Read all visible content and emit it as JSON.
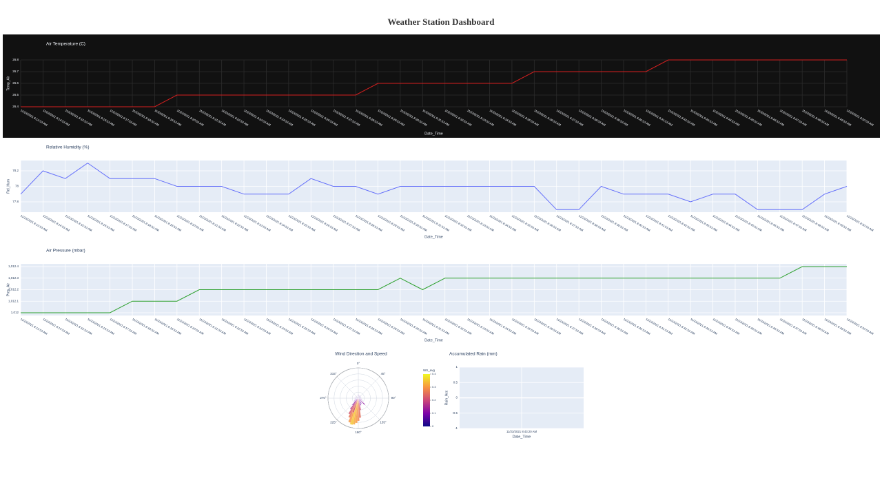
{
  "title": "Weather Station Dashboard",
  "chart_data": [
    {
      "type": "line",
      "theme": "dark",
      "title": "Air Temperature (C)",
      "x_label": "Date_Time",
      "y_label": "Temp_Air",
      "color": "#d62020",
      "categories": [
        "11/23/2021 8:13:53 AM",
        "11/23/2021 8:14:53 AM",
        "11/23/2021 8:15:53 AM",
        "11/23/2021 8:16:53 AM",
        "11/23/2021 8:17:53 AM",
        "11/23/2021 8:18:53 AM",
        "11/23/2021 8:19:53 AM",
        "11/23/2021 8:20:53 AM",
        "11/23/2021 8:21:53 AM",
        "11/23/2021 8:22:53 AM",
        "11/23/2021 8:23:53 AM",
        "11/23/2021 8:24:53 AM",
        "11/23/2021 8:25:53 AM",
        "11/23/2021 8:26:53 AM",
        "11/23/2021 8:27:53 AM",
        "11/23/2021 8:28:53 AM",
        "11/23/2021 8:29:53 AM",
        "11/23/2021 8:30:53 AM",
        "11/23/2021 8:31:53 AM",
        "11/23/2021 8:32:53 AM",
        "11/23/2021 8:33:53 AM",
        "11/23/2021 8:34:53 AM",
        "11/23/2021 8:35:53 AM",
        "11/23/2021 8:36:53 AM",
        "11/23/2021 8:37:53 AM",
        "11/23/2021 8:38:53 AM",
        "11/23/2021 8:39:53 AM",
        "11/23/2021 8:40:53 AM",
        "11/23/2021 8:41:53 AM",
        "11/23/2021 8:42:53 AM",
        "11/23/2021 8:43:53 AM",
        "11/23/2021 8:44:53 AM",
        "11/23/2021 8:45:53 AM",
        "11/23/2021 8:46:53 AM",
        "11/23/2021 8:47:53 AM",
        "11/23/2021 8:48:53 AM",
        "11/23/2021 8:49:53 AM",
        "11/23/2021 8:50:53 AM"
      ],
      "values": [
        26.4,
        26.4,
        26.4,
        26.4,
        26.4,
        26.4,
        26.4,
        26.5,
        26.5,
        26.5,
        26.5,
        26.5,
        26.5,
        26.5,
        26.5,
        26.5,
        26.6,
        26.6,
        26.6,
        26.6,
        26.6,
        26.6,
        26.6,
        26.7,
        26.7,
        26.7,
        26.7,
        26.7,
        26.7,
        26.8,
        26.8,
        26.8,
        26.8,
        26.8,
        26.8,
        26.8,
        26.8,
        26.8
      ],
      "ylim": [
        26.4,
        26.8
      ],
      "yticks": [
        26.4,
        26.5,
        26.6,
        26.7,
        26.8
      ],
      "grid": true
    },
    {
      "type": "line",
      "theme": "light",
      "title": "Relative Humidity (%)",
      "x_label": "Date_Time",
      "y_label": "Rel_Hum",
      "color": "#636efa",
      "categories": [
        "11/23/2021 8:13:53 AM",
        "11/23/2021 8:14:53 AM",
        "11/23/2021 8:15:53 AM",
        "11/23/2021 8:16:53 AM",
        "11/23/2021 8:17:53 AM",
        "11/23/2021 8:18:53 AM",
        "11/23/2021 8:19:53 AM",
        "11/23/2021 8:20:53 AM",
        "11/23/2021 8:21:53 AM",
        "11/23/2021 8:22:53 AM",
        "11/23/2021 8:23:53 AM",
        "11/23/2021 8:24:53 AM",
        "11/23/2021 8:25:53 AM",
        "11/23/2021 8:26:53 AM",
        "11/23/2021 8:27:53 AM",
        "11/23/2021 8:28:53 AM",
        "11/23/2021 8:29:53 AM",
        "11/23/2021 8:30:53 AM",
        "11/23/2021 8:31:53 AM",
        "11/23/2021 8:32:53 AM",
        "11/23/2021 8:33:53 AM",
        "11/23/2021 8:34:53 AM",
        "11/23/2021 8:35:53 AM",
        "11/23/2021 8:36:53 AM",
        "11/23/2021 8:37:53 AM",
        "11/23/2021 8:38:53 AM",
        "11/23/2021 8:39:53 AM",
        "11/23/2021 8:40:53 AM",
        "11/23/2021 8:41:53 AM",
        "11/23/2021 8:42:53 AM",
        "11/23/2021 8:43:53 AM",
        "11/23/2021 8:44:53 AM",
        "11/23/2021 8:45:53 AM",
        "11/23/2021 8:46:53 AM",
        "11/23/2021 8:47:53 AM",
        "11/23/2021 8:48:53 AM",
        "11/23/2021 8:49:53 AM",
        "11/23/2021 8:50:53 AM"
      ],
      "values": [
        77.9,
        78.2,
        78.1,
        78.3,
        78.1,
        78.1,
        78.1,
        78,
        78,
        78,
        77.9,
        77.9,
        77.9,
        78.1,
        78,
        78,
        77.9,
        78,
        78,
        78,
        78,
        78,
        78,
        78,
        77.7,
        77.7,
        78,
        77.9,
        77.9,
        77.9,
        77.8,
        77.9,
        77.9,
        77.7,
        77.7,
        77.7,
        77.9,
        78
      ],
      "ylim": [
        77.667,
        78.333
      ],
      "yticks": [
        77.8,
        78,
        78.2
      ],
      "grid": true
    },
    {
      "type": "line",
      "theme": "light",
      "title": "Air Pressure (mbar)",
      "x_label": "Date_Time",
      "y_label": "Pres_Air",
      "color": "#2ca02c",
      "categories": [
        "11/23/2021 8:13:53 AM",
        "11/23/2021 8:14:53 AM",
        "11/23/2021 8:15:53 AM",
        "11/23/2021 8:16:53 AM",
        "11/23/2021 8:17:53 AM",
        "11/23/2021 8:18:53 AM",
        "11/23/2021 8:19:53 AM",
        "11/23/2021 8:20:53 AM",
        "11/23/2021 8:21:53 AM",
        "11/23/2021 8:22:53 AM",
        "11/23/2021 8:23:53 AM",
        "11/23/2021 8:24:53 AM",
        "11/23/2021 8:25:53 AM",
        "11/23/2021 8:26:53 AM",
        "11/23/2021 8:27:53 AM",
        "11/23/2021 8:28:53 AM",
        "11/23/2021 8:29:53 AM",
        "11/23/2021 8:30:53 AM",
        "11/23/2021 8:31:53 AM",
        "11/23/2021 8:32:53 AM",
        "11/23/2021 8:33:53 AM",
        "11/23/2021 8:34:53 AM",
        "11/23/2021 8:35:53 AM",
        "11/23/2021 8:36:53 AM",
        "11/23/2021 8:37:53 AM",
        "11/23/2021 8:38:53 AM",
        "11/23/2021 8:39:53 AM",
        "11/23/2021 8:40:53 AM",
        "11/23/2021 8:41:53 AM",
        "11/23/2021 8:42:53 AM",
        "11/23/2021 8:43:53 AM",
        "11/23/2021 8:44:53 AM",
        "11/23/2021 8:45:53 AM",
        "11/23/2021 8:46:53 AM",
        "11/23/2021 8:47:53 AM",
        "11/23/2021 8:48:53 AM",
        "11/23/2021 8:49:53 AM",
        "11/23/2021 8:50:53 AM"
      ],
      "values": [
        1012,
        1012,
        1012,
        1012,
        1012,
        1012.1,
        1012.1,
        1012.1,
        1012.2,
        1012.2,
        1012.2,
        1012.2,
        1012.2,
        1012.2,
        1012.2,
        1012.2,
        1012.2,
        1012.3,
        1012.2,
        1012.3,
        1012.3,
        1012.3,
        1012.3,
        1012.3,
        1012.3,
        1012.3,
        1012.3,
        1012.3,
        1012.3,
        1012.3,
        1012.3,
        1012.3,
        1012.3,
        1012.3,
        1012.3,
        1012.4,
        1012.4,
        1012.4
      ],
      "ylim": [
        1011.976,
        1012.424
      ],
      "yticks": [
        {
          "value": 1012,
          "label": "1,012"
        },
        {
          "value": 1012.1,
          "label": "1,012.1"
        },
        {
          "value": 1012.2,
          "label": "1,012.2"
        },
        {
          "value": 1012.3,
          "label": "1,012.3"
        },
        {
          "value": 1012.4,
          "label": "1,012.4"
        }
      ],
      "grid": true
    },
    {
      "type": "barpolar",
      "title": "Wind Direction and Speed",
      "colorbar_title": "WS_avg",
      "theta": [
        180,
        185,
        190,
        195,
        200,
        205,
        210,
        215,
        220,
        170,
        160,
        150,
        135,
        120,
        90,
        60,
        30,
        0,
        300,
        270,
        240,
        175,
        200,
        225
      ],
      "r": [
        7.5,
        8.2,
        8.8,
        9,
        8.5,
        7,
        6,
        4.5,
        3,
        4,
        2.5,
        2,
        3,
        1.5,
        1,
        1,
        1,
        1.2,
        1,
        1.2,
        1.5,
        6.5,
        5,
        2
      ],
      "color_values": [
        0.28,
        0.3,
        0.32,
        0.35,
        0.3,
        0.26,
        0.22,
        0.18,
        0.12,
        0.2,
        0.1,
        0.08,
        0.12,
        0.06,
        0.05,
        0.04,
        0.05,
        0.06,
        0.05,
        0.05,
        0.07,
        0.25,
        0.22,
        0.1
      ],
      "rlim": [
        0,
        10
      ],
      "rticks": [
        2,
        4,
        6,
        8,
        10
      ],
      "angular_ticks": [
        {
          "value": 0,
          "label": "0°"
        },
        {
          "value": 45,
          "label": "45°"
        },
        {
          "value": 90,
          "label": "90°"
        },
        {
          "value": 135,
          "label": "135°"
        },
        {
          "value": 180,
          "label": "180°"
        },
        {
          "value": 225,
          "label": "225°"
        },
        {
          "value": 270,
          "label": "270°"
        },
        {
          "value": 315,
          "label": "315°"
        }
      ],
      "colorscale": [
        "#0d0887",
        "#7e03a8",
        "#cc4778",
        "#f89540",
        "#f0f921"
      ],
      "clim": [
        0,
        0.4
      ],
      "cticks": [
        0,
        0.1,
        0.2,
        0.3,
        0.4
      ]
    },
    {
      "type": "line",
      "theme": "light",
      "title": "Accumulated Rain (mm)",
      "x_label": "Date_Time",
      "y_label": "Rain_Acc",
      "color": "#636efa",
      "categories": [
        "11/23/2021 8:43:20 AM"
      ],
      "ylim": [
        -1,
        1
      ],
      "yticks": [
        -1,
        -0.5,
        0,
        0.5,
        1
      ],
      "grid": true
    }
  ]
}
